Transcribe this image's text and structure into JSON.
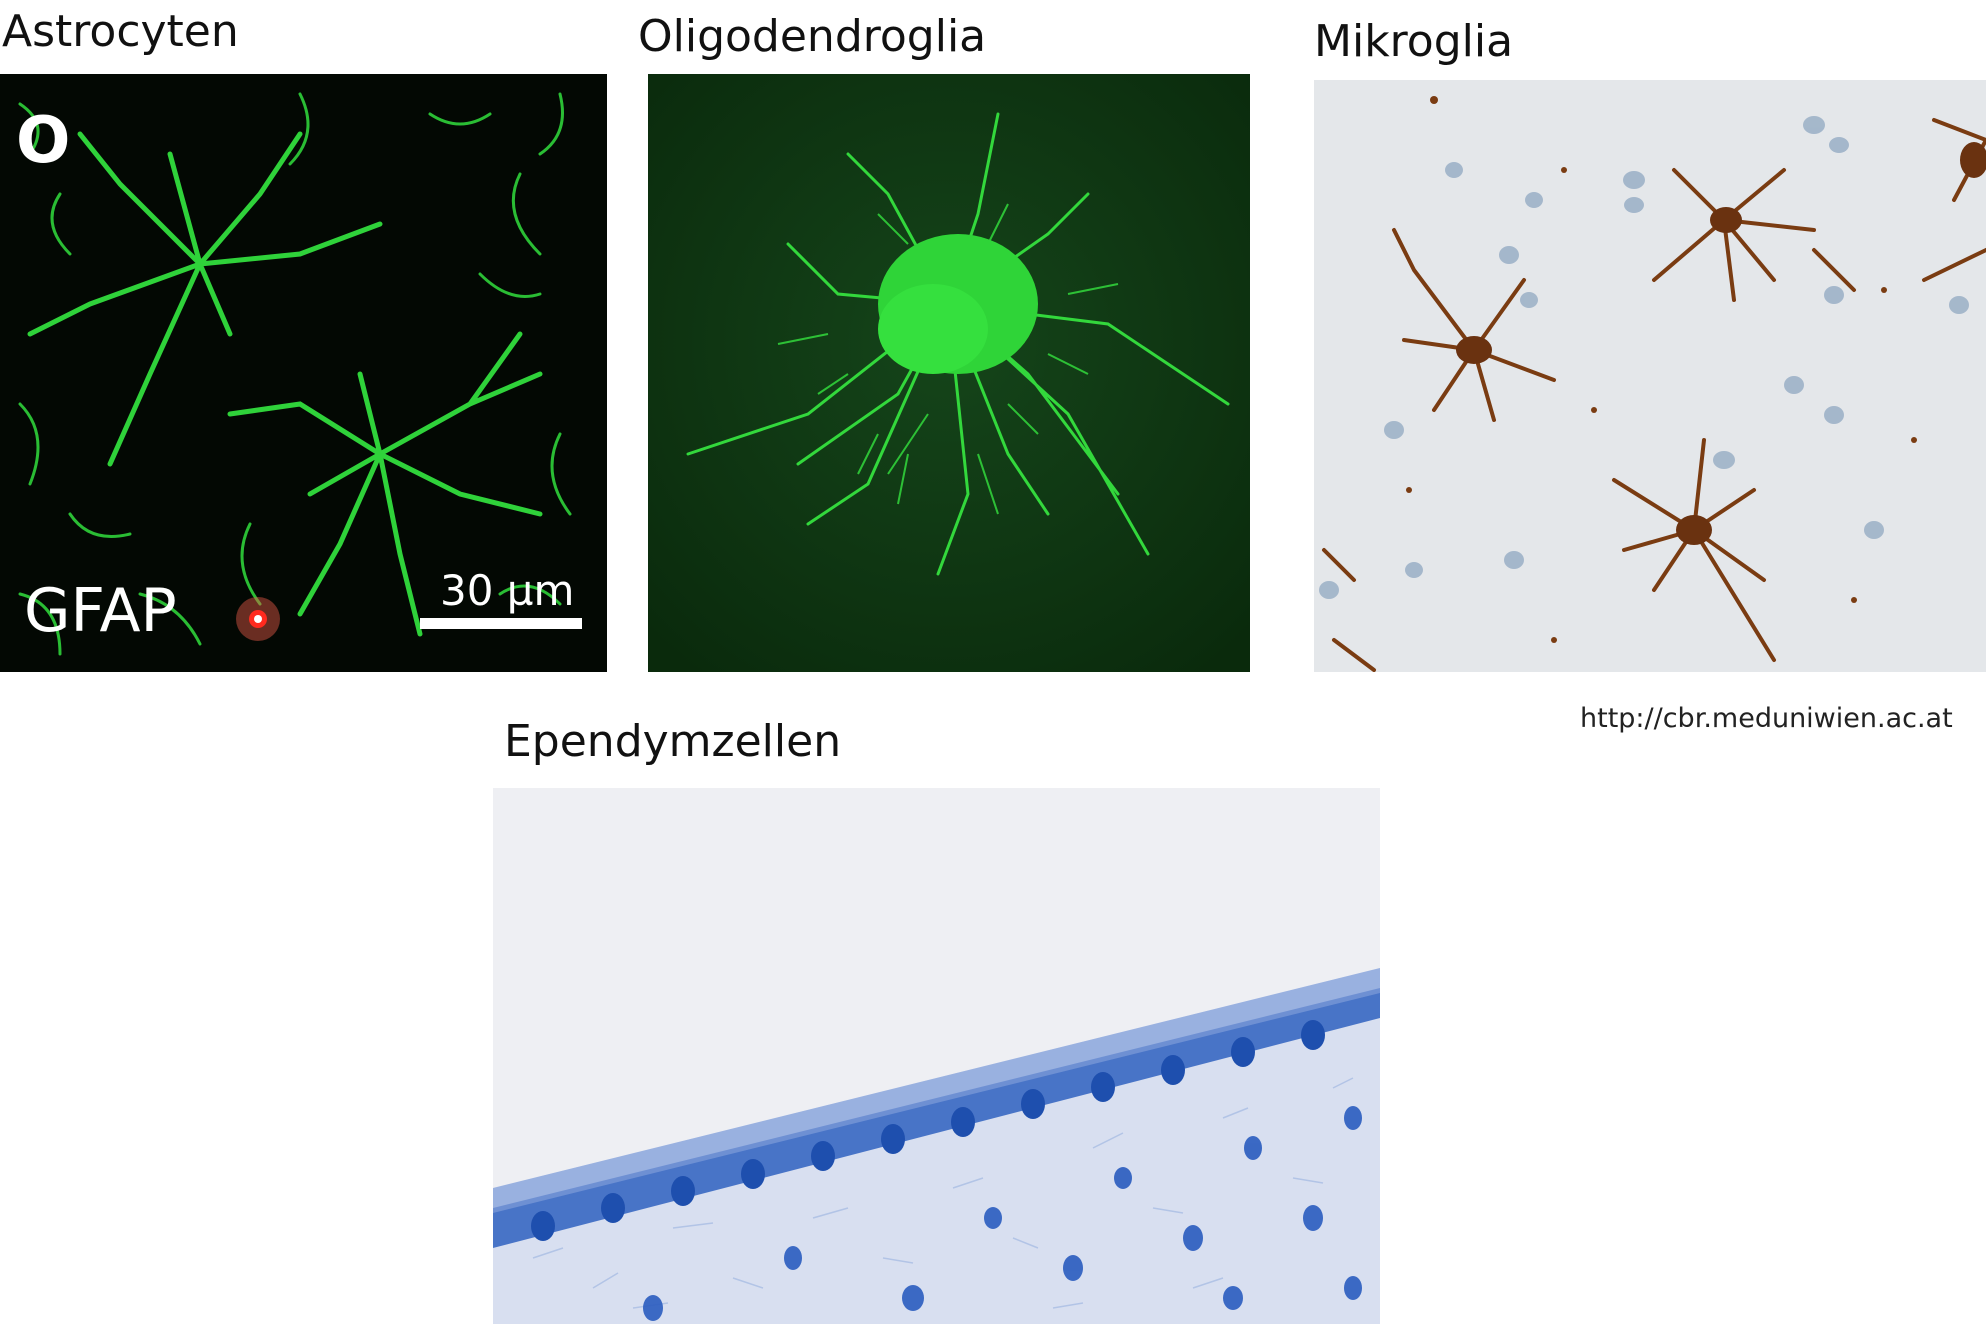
{
  "panels": {
    "astrocytes": {
      "caption": "Astrocyten",
      "panel_letter": "O",
      "stain_label": "GFAP",
      "scalebar_label": "30 µm"
    },
    "oligodendroglia": {
      "caption": "Oligodendroglia"
    },
    "microglia": {
      "caption": "Mikroglia"
    },
    "ependymal": {
      "caption": "Ependymzellen"
    }
  },
  "source": "http://cbr.meduniwien.ac.at",
  "colors": {
    "fluorescence_green": "#2fd23a",
    "astro_background": "#030803",
    "oligo_background": "#0b2a0c",
    "microglia_background": "#e6e9ec",
    "microglia_stain": "#7a3c12",
    "ependymal_background": "#eeeff4",
    "ependymal_nuclei": "#2f62c0"
  }
}
